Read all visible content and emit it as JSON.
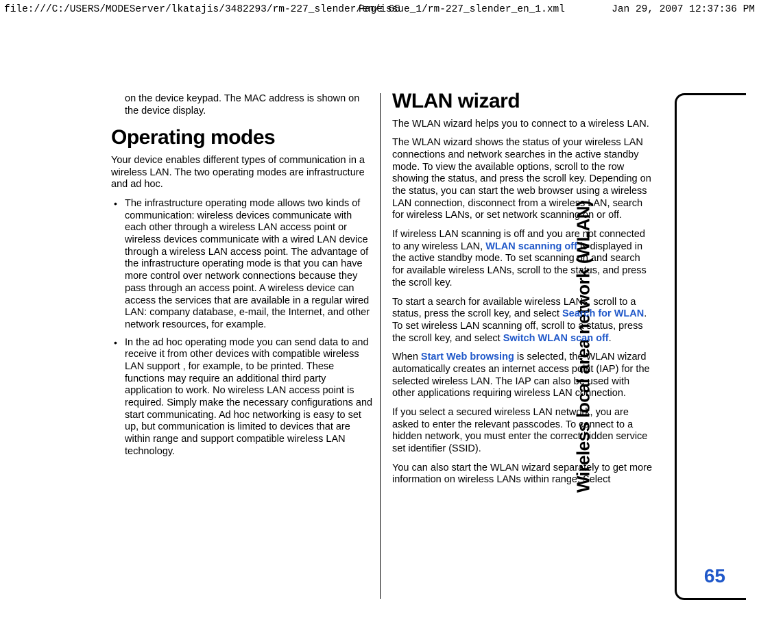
{
  "header": {
    "path": "file:///C:/USERS/MODEServer/lkatajis/3482293/rm-227_slender/en/issue_1/rm-227_slender_en_1.xml",
    "page": "Page 65",
    "timestamp": "Jan 29, 2007 12:37:36 PM"
  },
  "side_tab": {
    "label": "Wireless local area network (WLAN)"
  },
  "page_number": "65",
  "left_column": {
    "intro_continued": "on the device keypad. The MAC address is shown on the device display.",
    "heading": "Operating modes",
    "lead": "Your device enables different types of communication in a wireless LAN. The two operating modes are infrastructure and ad hoc.",
    "bullet1": "The infrastructure operating mode allows two kinds of communication: wireless devices communicate with each other through a wireless LAN access point or wireless devices communicate with a wired LAN device through a wireless LAN access point. The advantage of the infrastructure operating mode is that you can have more control over network connections because they pass through an access point. A wireless device can access the services that are available in a regular wired LAN: company database, e-mail, the Internet, and other network resources, for example.",
    "bullet2": "In the ad hoc operating mode you can send data to and receive it from other devices with compatible wireless LAN support , for example, to be printed. These functions may require an additional third party application to work. No wireless LAN access point is required. Simply make the necessary configurations and start communicating. Ad hoc networking is easy to set up, but communication is limited to devices that are within range and support compatible wireless LAN technology."
  },
  "right_column": {
    "heading": "WLAN wizard",
    "p1": "The WLAN wizard helps you to connect to a wireless LAN.",
    "p2": "The WLAN wizard shows the status of your wireless LAN connections and network searches in the active standby mode. To view the available options, scroll to the row showing the status, and press the scroll key. Depending on the status, you can start the web browser using a wireless LAN connection, disconnect from a wireless LAN, search for wireless LANs, or set network scanning on or off.",
    "p3a": "If wireless LAN scanning is off and you are not connected to any wireless LAN, ",
    "cmd_scan_off": "WLAN scanning off",
    "p3b": " is displayed in the active standby mode. To set scanning on and search for available wireless LANs, scroll to the status, and press the scroll key.",
    "p4a": "To start a search for available wireless LANs, scroll to a status, press the scroll key, and select ",
    "cmd_search": "Search for WLAN",
    "p4b": ". To set wireless LAN scanning off, scroll to a status, press the scroll key, and select ",
    "cmd_switch_off": "Switch WLAN scan off",
    "p4c": ".",
    "p5a": "When ",
    "cmd_start_web": "Start Web browsing",
    "p5b": " is selected, the WLAN wizard automatically creates an internet access point (IAP) for the selected wireless LAN. The IAP can also be used with other applications requiring wireless LAN connection.",
    "p6": "If you select a secured wireless LAN network, you are asked to enter the relevant passcodes. To connect to a hidden network, you must enter the correct hidden service set identifier (SSID).",
    "p7": "You can also start the WLAN wizard separately to get more information on wireless LANs within range. Select"
  }
}
